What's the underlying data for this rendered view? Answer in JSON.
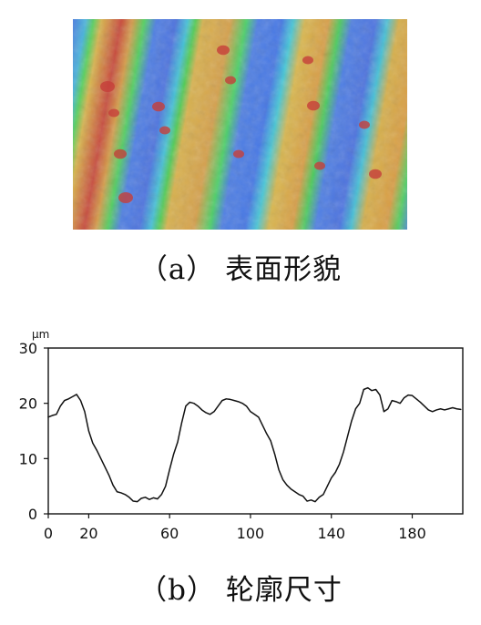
{
  "figure": {
    "caption_a": "（a）  表面形貌",
    "caption_b": "（b）  轮廓尺寸"
  },
  "surface_image": {
    "colors": {
      "blue": "#4f7fe3",
      "cyan": "#35c6d6",
      "green": "#43c95a",
      "yellow": "#d6b84f",
      "orange": "#d39a46",
      "red": "#c53f39"
    }
  },
  "chart_data": {
    "type": "line",
    "title": "",
    "xlabel": "",
    "ylabel": "μm",
    "xlim": [
      0,
      205
    ],
    "ylim": [
      0,
      30
    ],
    "x_ticks": [
      0,
      20,
      60,
      100,
      140,
      180
    ],
    "y_ticks": [
      0,
      10,
      20,
      30
    ],
    "grid": false,
    "series": [
      {
        "x": [
          0,
          2,
          4,
          6,
          8,
          10,
          12,
          14,
          16,
          18,
          20,
          22,
          24,
          26,
          28,
          30,
          32,
          34,
          36,
          38,
          40,
          42,
          44,
          46,
          48,
          50,
          52,
          54,
          56,
          58,
          60,
          62,
          64,
          66,
          68,
          70,
          72,
          74,
          76,
          78,
          80,
          82,
          84,
          86,
          88,
          90,
          92,
          94,
          96,
          98,
          100,
          102,
          104,
          106,
          108,
          110,
          112,
          114,
          116,
          118,
          120,
          122,
          124,
          126,
          128,
          130,
          132,
          134,
          136,
          138,
          140,
          142,
          144,
          146,
          148,
          150,
          152,
          154,
          156,
          158,
          160,
          162,
          164,
          166,
          168,
          170,
          172,
          174,
          176,
          178,
          180,
          182,
          184,
          186,
          188,
          190,
          192,
          194,
          196,
          198,
          200,
          202,
          204
        ],
        "values": [
          17.5,
          17.8,
          18.0,
          19.5,
          20.5,
          20.8,
          21.2,
          21.6,
          20.5,
          18.5,
          15.0,
          12.8,
          11.5,
          10.0,
          8.5,
          7.0,
          5.2,
          4.0,
          3.8,
          3.5,
          3.0,
          2.3,
          2.2,
          2.8,
          3.0,
          2.6,
          2.9,
          2.7,
          3.5,
          5.0,
          8.0,
          10.8,
          13.0,
          16.5,
          19.5,
          20.2,
          20.0,
          19.5,
          18.8,
          18.3,
          18.0,
          18.5,
          19.5,
          20.5,
          20.8,
          20.7,
          20.5,
          20.3,
          20.0,
          19.5,
          18.5,
          18.0,
          17.5,
          16.0,
          14.5,
          13.2,
          10.8,
          8.0,
          6.2,
          5.2,
          4.5,
          4.0,
          3.5,
          3.2,
          2.3,
          2.5,
          2.2,
          3.0,
          3.5,
          5.0,
          6.5,
          7.5,
          9.0,
          11.2,
          14.0,
          16.8,
          19.0,
          20.0,
          22.5,
          22.8,
          22.3,
          22.5,
          21.5,
          18.5,
          19.0,
          20.5,
          20.3,
          20.0,
          21.0,
          21.5,
          21.4,
          20.8,
          20.2,
          19.5,
          18.8,
          18.5,
          18.8,
          19.0,
          18.8,
          19.0,
          19.2,
          19.0,
          18.9
        ]
      }
    ]
  }
}
